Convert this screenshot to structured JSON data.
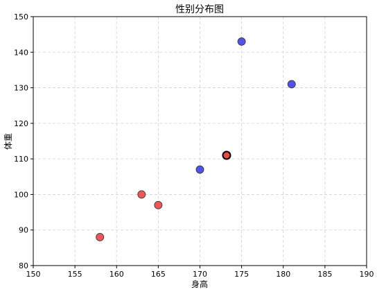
{
  "chart_data": {
    "type": "scatter",
    "title": "性别分布图",
    "xlabel": "身高",
    "ylabel": "体重",
    "xlim": [
      150,
      190
    ],
    "ylim": [
      80,
      150
    ],
    "xticks": [
      150,
      155,
      160,
      165,
      170,
      175,
      180,
      185,
      190
    ],
    "yticks": [
      80,
      90,
      100,
      110,
      120,
      130,
      140,
      150
    ],
    "grid": true,
    "legend": "none",
    "series": [
      {
        "color": "#4444e6",
        "points": [
          {
            "x": 170,
            "y": 107
          },
          {
            "x": 175,
            "y": 143
          },
          {
            "x": 181,
            "y": 131
          }
        ]
      },
      {
        "color": "#e84a4a",
        "points": [
          {
            "x": 158,
            "y": 88
          },
          {
            "x": 163,
            "y": 100
          },
          {
            "x": 165,
            "y": 97
          }
        ]
      },
      {
        "color": "#e84a4a",
        "marker": "highlighted",
        "points": [
          {
            "x": 173.2,
            "y": 111
          }
        ]
      }
    ]
  }
}
